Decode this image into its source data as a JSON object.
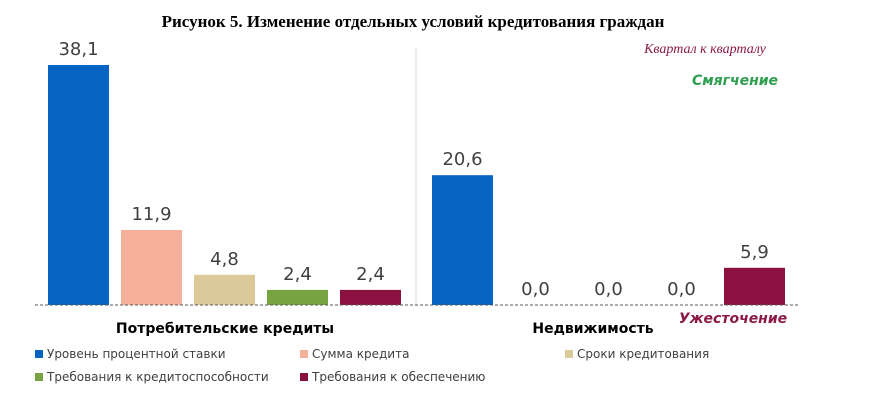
{
  "chart_data": {
    "type": "bar",
    "title": "Рисунок 5. Изменение отдельных условий кредитования граждан",
    "subtitle": "Квартал к кварталу",
    "annotations": {
      "top": "Смягчение",
      "bottom": "Ужесточение"
    },
    "categories": [
      "Потребительские кредиты",
      "Недвижимость"
    ],
    "series": [
      {
        "name": "Уровень процентной ставки",
        "color": "#0563c1",
        "values": [
          38.1,
          20.6
        ],
        "labels": [
          "38,1",
          "20,6"
        ]
      },
      {
        "name": "Сумма кредита",
        "color": "#f4b09a",
        "values": [
          11.9,
          0.0
        ],
        "labels": [
          "11,9",
          "0,0"
        ]
      },
      {
        "name": "Сроки кредитования",
        "color": "#dcc99a",
        "values": [
          4.8,
          0.0
        ],
        "labels": [
          "4,8",
          "0,0"
        ]
      },
      {
        "name": "Требования к кредитоспособности",
        "color": "#77a441",
        "values": [
          2.4,
          0.0
        ],
        "labels": [
          "2,4",
          "0,0"
        ]
      },
      {
        "name": "Требования к обеспечению",
        "color": "#8b1141",
        "values": [
          2.4,
          5.9
        ],
        "labels": [
          "2,4",
          "5,9"
        ]
      }
    ],
    "ylim": [
      0,
      38.1
    ],
    "legend_position": "bottom",
    "grid": false
  }
}
